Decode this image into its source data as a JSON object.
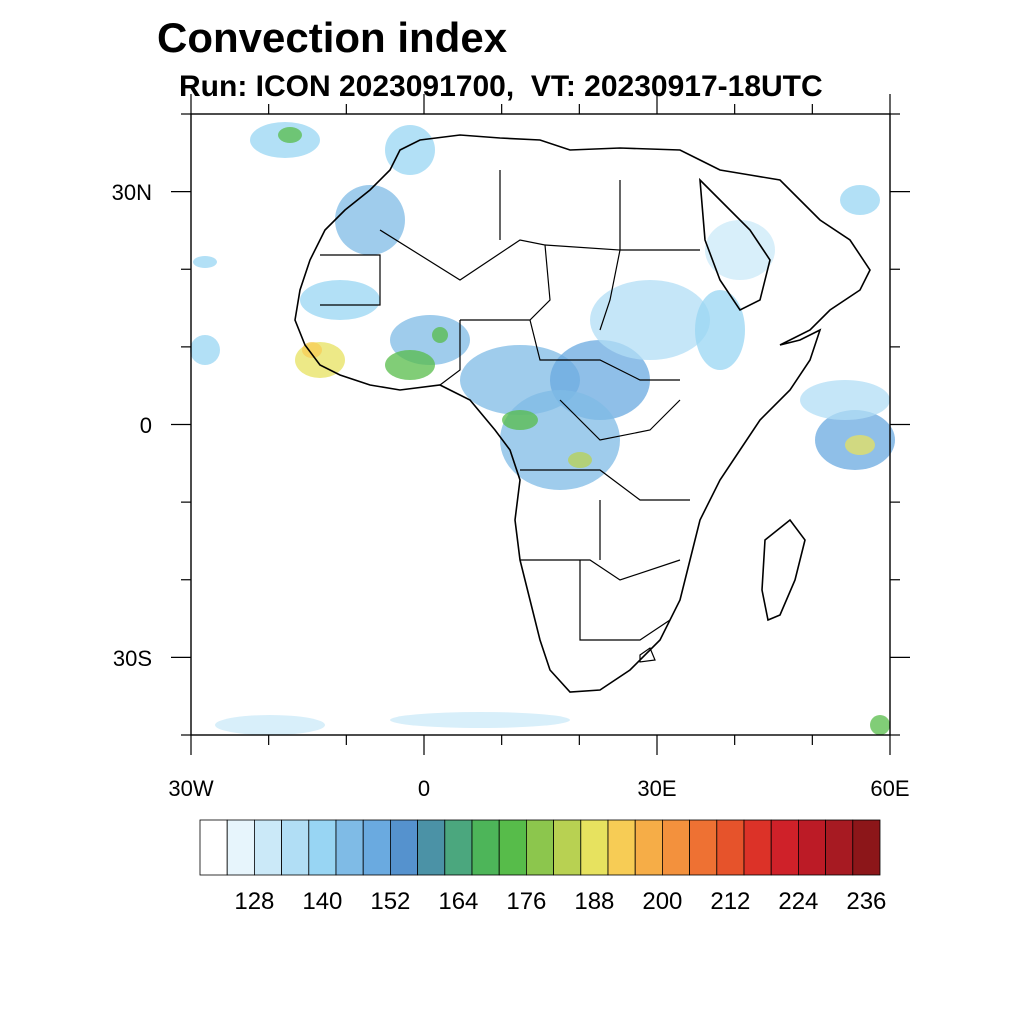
{
  "title": "Convection index",
  "subtitle": "Run: ICON 2023091700,  VT: 20230917-18UTC",
  "map": {
    "lon_range": [
      -30,
      60
    ],
    "lat_range": [
      -40,
      40
    ],
    "lat_ticks": [
      {
        "value": 30,
        "label": "30N"
      },
      {
        "value": 0,
        "label": "0"
      },
      {
        "value": -30,
        "label": "30S"
      }
    ],
    "lon_ticks": [
      {
        "value": -30,
        "label": "30W"
      },
      {
        "value": 0,
        "label": "0"
      },
      {
        "value": 30,
        "label": "30E"
      },
      {
        "value": 60,
        "label": "60E"
      }
    ]
  },
  "colorbar": {
    "colors": [
      "#ffffff",
      "#e7f5fc",
      "#cbe9f8",
      "#b1def5",
      "#98d5f3",
      "#7fbbe6",
      "#6aaae0",
      "#5592ce",
      "#4b92a6",
      "#4ba77e",
      "#4db559",
      "#57bc4a",
      "#8cc64d",
      "#b8d152",
      "#e7e25f",
      "#f7cc55",
      "#f6ad47",
      "#f3913d",
      "#ee7133",
      "#e6532b",
      "#dc3228",
      "#cf2129",
      "#bc1b26",
      "#a71a22",
      "#8c1619"
    ],
    "labels": [
      "128",
      "140",
      "152",
      "164",
      "176",
      "188",
      "200",
      "212",
      "224",
      "236"
    ]
  }
}
